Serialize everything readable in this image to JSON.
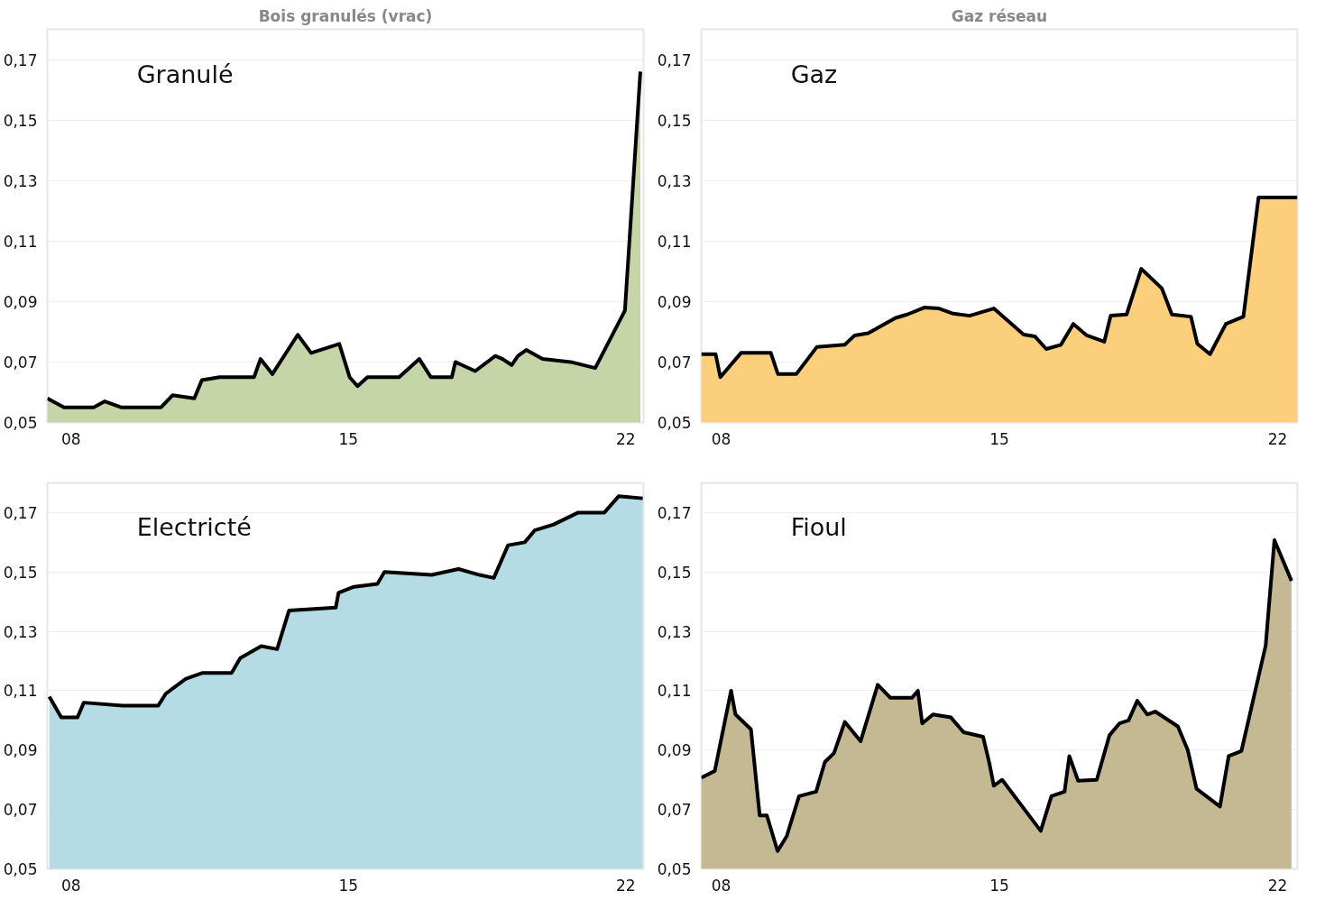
{
  "chart_data": [
    {
      "type": "area",
      "title": "Bois granulés (vrac)",
      "xlim": [
        7.4,
        22.45
      ],
      "ylim": [
        0.05,
        0.18
      ],
      "grid": "y",
      "line_style": "solid",
      "xticks": [
        {
          "value": 8,
          "label": "08"
        },
        {
          "value": 15,
          "label": "15"
        },
        {
          "value": 22,
          "label": "22"
        }
      ],
      "yticks": [
        {
          "value": 0.05,
          "label": "0,05"
        },
        {
          "value": 0.07,
          "label": "0,07"
        },
        {
          "value": 0.09,
          "label": "0,09"
        },
        {
          "value": 0.11,
          "label": "0,11"
        },
        {
          "value": 0.13,
          "label": "0,13"
        },
        {
          "value": 0.15,
          "label": "0,15"
        },
        {
          "value": 0.17,
          "label": "0,17"
        }
      ],
      "x": [
        7.4,
        7.82,
        8.57,
        8.85,
        9.26,
        9.67,
        10.27,
        10.56,
        11.11,
        11.3,
        11.75,
        12.62,
        12.78,
        13.08,
        13.72,
        14.06,
        14.77,
        15.03,
        15.23,
        15.48,
        16.28,
        16.79,
        17.08,
        17.61,
        17.7,
        18.2,
        18.71,
        18.89,
        19.12,
        19.28,
        19.49,
        19.9,
        20.61,
        21.23,
        21.98,
        22.37
      ],
      "series": [
        {
          "name": "Granulé",
          "color": "#c5d5a8",
          "values": [
            0.058,
            0.055,
            0.055,
            0.057,
            0.055,
            0.055,
            0.055,
            0.059,
            0.058,
            0.064,
            0.065,
            0.065,
            0.071,
            0.066,
            0.079,
            0.073,
            0.076,
            0.065,
            0.062,
            0.065,
            0.065,
            0.071,
            0.065,
            0.065,
            0.07,
            0.067,
            0.072,
            0.071,
            0.069,
            0.072,
            0.074,
            0.071,
            0.07,
            0.068,
            0.087,
            0.166
          ]
        }
      ]
    },
    {
      "type": "area",
      "title": "Gaz réseau",
      "xlim": [
        7.5,
        22.5
      ],
      "ylim": [
        0.05,
        0.18
      ],
      "grid": "y",
      "line_style": "solid",
      "xticks": [
        {
          "value": 8,
          "label": "08"
        },
        {
          "value": 15,
          "label": "15"
        },
        {
          "value": 22,
          "label": "22"
        }
      ],
      "yticks": [
        {
          "value": 0.05,
          "label": "0,05"
        },
        {
          "value": 0.07,
          "label": "0,07"
        },
        {
          "value": 0.09,
          "label": "0,09"
        },
        {
          "value": 0.11,
          "label": "0,11"
        },
        {
          "value": 0.13,
          "label": "0,13"
        },
        {
          "value": 0.15,
          "label": "0,15"
        },
        {
          "value": 0.17,
          "label": "0,17"
        }
      ],
      "x": [
        7.5,
        7.86,
        7.98,
        8.5,
        9.25,
        9.43,
        9.89,
        10.41,
        11.11,
        11.36,
        11.7,
        12.39,
        12.68,
        13.11,
        13.48,
        13.84,
        14.25,
        14.86,
        15.61,
        15.89,
        16.18,
        16.55,
        16.86,
        17.2,
        17.64,
        17.8,
        18.2,
        18.57,
        19.09,
        19.34,
        19.82,
        19.98,
        20.3,
        20.7,
        21.14,
        21.52,
        22.5
      ],
      "series": [
        {
          "name": "Gaz",
          "color": "#fccf7d",
          "values": [
            0.0726,
            0.0726,
            0.065,
            0.073,
            0.073,
            0.066,
            0.066,
            0.075,
            0.0757,
            0.0788,
            0.0795,
            0.0846,
            0.0857,
            0.088,
            0.0877,
            0.086,
            0.0853,
            0.0877,
            0.0791,
            0.0785,
            0.0743,
            0.0757,
            0.0826,
            0.0788,
            0.0767,
            0.0853,
            0.0857,
            0.1008,
            0.0943,
            0.0857,
            0.085,
            0.076,
            0.0726,
            0.0826,
            0.085,
            0.1244,
            0.1244
          ]
        }
      ]
    },
    {
      "type": "area",
      "xlim": [
        7.4,
        22.45
      ],
      "ylim": [
        0.05,
        0.18
      ],
      "grid": "y",
      "line_style": "solid",
      "xticks": [
        {
          "value": 8,
          "label": "08"
        },
        {
          "value": 15,
          "label": "15"
        },
        {
          "value": 22,
          "label": "22"
        }
      ],
      "yticks": [
        {
          "value": 0.05,
          "label": "0,05"
        },
        {
          "value": 0.07,
          "label": "0,07"
        },
        {
          "value": 0.09,
          "label": "0,09"
        },
        {
          "value": 0.11,
          "label": "0,11"
        },
        {
          "value": 0.13,
          "label": "0,13"
        },
        {
          "value": 0.15,
          "label": "0,15"
        },
        {
          "value": 0.17,
          "label": "0,17"
        }
      ],
      "x": [
        7.45,
        7.75,
        8.16,
        8.32,
        9.3,
        10.2,
        10.39,
        10.89,
        11.32,
        12.05,
        12.27,
        12.8,
        13.2,
        13.5,
        14.68,
        14.75,
        15.14,
        15.73,
        15.91,
        17.1,
        17.78,
        18.31,
        18.67,
        19.03,
        19.45,
        19.7,
        20.18,
        20.8,
        21.46,
        21.82,
        22.43
      ],
      "series": [
        {
          "name": "Electricté",
          "color": "#b5dce5",
          "values": [
            0.108,
            0.101,
            0.101,
            0.106,
            0.105,
            0.105,
            0.109,
            0.114,
            0.116,
            0.116,
            0.121,
            0.125,
            0.124,
            0.137,
            0.138,
            0.143,
            0.145,
            0.146,
            0.15,
            0.149,
            0.151,
            0.149,
            0.148,
            0.159,
            0.16,
            0.164,
            0.166,
            0.17,
            0.17,
            0.1755,
            0.1748
          ]
        }
      ]
    },
    {
      "type": "area",
      "xlim": [
        7.5,
        22.5
      ],
      "ylim": [
        0.05,
        0.18
      ],
      "grid": "y",
      "line_style": "solid",
      "xticks": [
        {
          "value": 8,
          "label": "08"
        },
        {
          "value": 15,
          "label": "15"
        },
        {
          "value": 22,
          "label": "22"
        }
      ],
      "yticks": [
        {
          "value": 0.05,
          "label": "0,05"
        },
        {
          "value": 0.07,
          "label": "0,07"
        },
        {
          "value": 0.09,
          "label": "0,09"
        },
        {
          "value": 0.11,
          "label": "0,11"
        },
        {
          "value": 0.13,
          "label": "0,13"
        },
        {
          "value": 0.15,
          "label": "0,15"
        },
        {
          "value": 0.17,
          "label": "0,17"
        }
      ],
      "x": [
        7.5,
        7.84,
        8.25,
        8.36,
        8.75,
        8.97,
        9.15,
        9.42,
        9.65,
        9.96,
        10.39,
        10.61,
        10.84,
        11.11,
        11.51,
        11.94,
        12.26,
        12.8,
        12.95,
        13.06,
        13.33,
        13.78,
        14.1,
        14.59,
        14.75,
        14.86,
        15.07,
        16.04,
        16.31,
        16.64,
        16.76,
        16.98,
        17.45,
        17.77,
        18.02,
        18.25,
        18.47,
        18.72,
        18.92,
        19.49,
        19.74,
        19.96,
        20.55,
        20.77,
        21.09,
        21.7,
        21.92,
        22.35
      ],
      "series": [
        {
          "name": "Fioul",
          "color": "#c5b994",
          "values": [
            0.0807,
            0.083,
            0.11,
            0.102,
            0.097,
            0.068,
            0.068,
            0.056,
            0.061,
            0.0745,
            0.076,
            0.086,
            0.089,
            0.0995,
            0.093,
            0.112,
            0.1076,
            0.1076,
            0.11,
            0.099,
            0.102,
            0.101,
            0.096,
            0.0945,
            0.0855,
            0.078,
            0.08,
            0.0628,
            0.0745,
            0.076,
            0.088,
            0.0797,
            0.08,
            0.095,
            0.099,
            0.1,
            0.1066,
            0.102,
            0.103,
            0.098,
            0.09,
            0.077,
            0.071,
            0.088,
            0.0897,
            0.1252,
            0.1607,
            0.147
          ]
        }
      ]
    }
  ]
}
